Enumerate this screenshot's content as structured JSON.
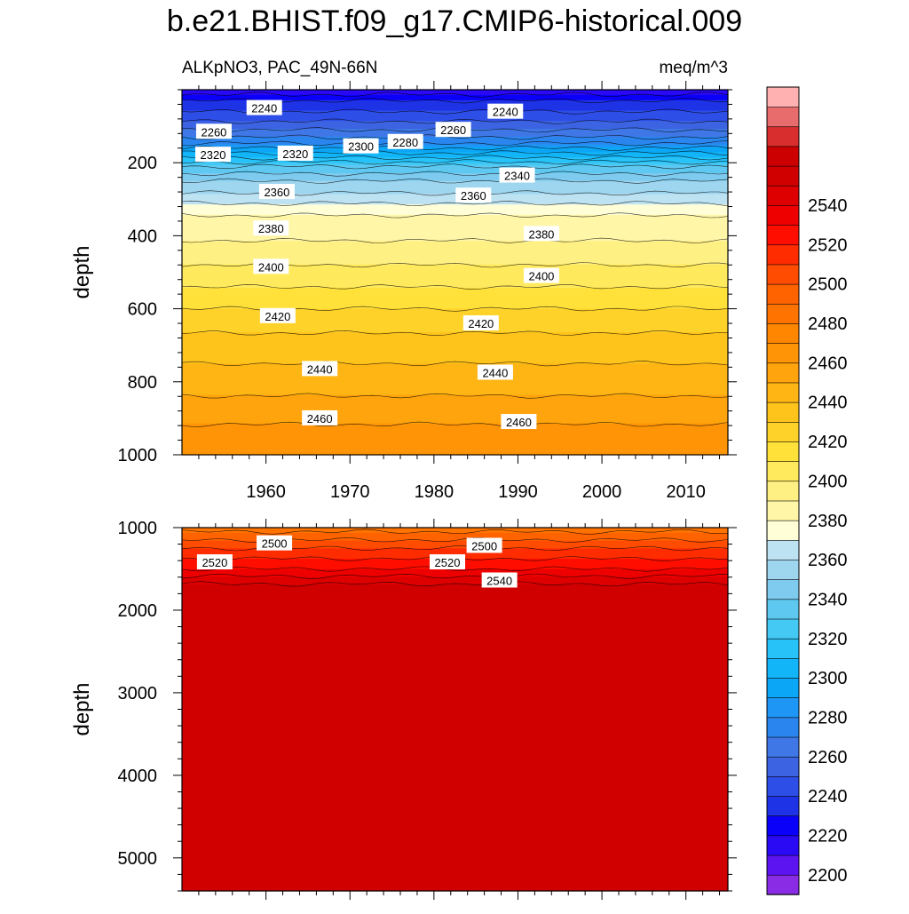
{
  "title": "b.e21.BHIST.f09_g17.CMIP6-historical.009",
  "left_subtitle": "ALKpNO3, PAC_49N-66N",
  "right_subtitle": "meq/m^3",
  "chart_data": [
    {
      "type": "heatmap",
      "panel": "upper",
      "ylabel": "depth",
      "xlim": [
        1950,
        2015
      ],
      "ylim": [
        1000,
        0
      ],
      "x_ticks": [
        1960,
        1970,
        1980,
        1990,
        2000,
        2010
      ],
      "y_ticks": [
        200,
        400,
        600,
        800,
        1000
      ],
      "contour_levels_depth_profile": [
        {
          "depth": 5,
          "value": 2215
        },
        {
          "depth": 30,
          "value": 2230
        },
        {
          "depth": 60,
          "value": 2240
        },
        {
          "depth": 100,
          "value": 2255
        },
        {
          "depth": 140,
          "value": 2275
        },
        {
          "depth": 180,
          "value": 2305
        },
        {
          "depth": 210,
          "value": 2330
        },
        {
          "depth": 250,
          "value": 2350
        },
        {
          "depth": 300,
          "value": 2365
        },
        {
          "depth": 330,
          "value": 2378
        },
        {
          "depth": 400,
          "value": 2388
        },
        {
          "depth": 480,
          "value": 2400
        },
        {
          "depth": 600,
          "value": 2420
        },
        {
          "depth": 700,
          "value": 2435
        },
        {
          "depth": 800,
          "value": 2445
        },
        {
          "depth": 900,
          "value": 2458
        },
        {
          "depth": 1000,
          "value": 2470
        }
      ],
      "contour_labels": [
        {
          "text": "2240",
          "x": 1959.8,
          "depth": 50
        },
        {
          "text": "2240",
          "x": 1988.5,
          "depth": 60
        },
        {
          "text": "2260",
          "x": 1953.8,
          "depth": 115
        },
        {
          "text": "2260",
          "x": 1982.3,
          "depth": 110
        },
        {
          "text": "2280",
          "x": 1976.6,
          "depth": 143
        },
        {
          "text": "2300",
          "x": 1971.3,
          "depth": 155
        },
        {
          "text": "2320",
          "x": 1953.7,
          "depth": 178
        },
        {
          "text": "2320",
          "x": 1963.5,
          "depth": 175
        },
        {
          "text": "2340",
          "x": 1989.9,
          "depth": 235
        },
        {
          "text": "2360",
          "x": 1961.3,
          "depth": 280
        },
        {
          "text": "2360",
          "x": 1984.7,
          "depth": 290
        },
        {
          "text": "2380",
          "x": 1960.6,
          "depth": 380
        },
        {
          "text": "2380",
          "x": 1992.8,
          "depth": 395
        },
        {
          "text": "2400",
          "x": 1960.6,
          "depth": 485
        },
        {
          "text": "2400",
          "x": 1992.8,
          "depth": 510
        },
        {
          "text": "2420",
          "x": 1961.4,
          "depth": 620
        },
        {
          "text": "2420",
          "x": 1985.6,
          "depth": 640
        },
        {
          "text": "2440",
          "x": 1966.4,
          "depth": 765
        },
        {
          "text": "2440",
          "x": 1987.3,
          "depth": 775
        },
        {
          "text": "2460",
          "x": 1966.4,
          "depth": 900
        },
        {
          "text": "2460",
          "x": 1990.1,
          "depth": 910
        }
      ]
    },
    {
      "type": "heatmap",
      "panel": "lower",
      "ylabel": "depth",
      "xlim": [
        1950,
        2015
      ],
      "ylim": [
        5400,
        1000
      ],
      "y_ticks": [
        1000,
        2000,
        3000,
        4000,
        5000
      ],
      "contour_levels_depth_profile": [
        {
          "depth": 1000,
          "value": 2485
        },
        {
          "depth": 1150,
          "value": 2500
        },
        {
          "depth": 1300,
          "value": 2515
        },
        {
          "depth": 1450,
          "value": 2525
        },
        {
          "depth": 1550,
          "value": 2535
        },
        {
          "depth": 1650,
          "value": 2548
        },
        {
          "depth": 1780,
          "value": 2556
        },
        {
          "depth": 5400,
          "value": 2556
        }
      ],
      "contour_labels": [
        {
          "text": "2500",
          "x": 1961.0,
          "depth": 1190
        },
        {
          "text": "2500",
          "x": 1986.0,
          "depth": 1220
        },
        {
          "text": "2520",
          "x": 1953.9,
          "depth": 1420
        },
        {
          "text": "2520",
          "x": 1981.6,
          "depth": 1420
        },
        {
          "text": "2540",
          "x": 1987.8,
          "depth": 1640
        }
      ]
    },
    {
      "type": "colorbar",
      "levels": [
        2200,
        2210,
        2220,
        2230,
        2240,
        2250,
        2260,
        2270,
        2280,
        2290,
        2300,
        2310,
        2320,
        2330,
        2340,
        2350,
        2360,
        2370,
        2380,
        2390,
        2400,
        2410,
        2420,
        2430,
        2440,
        2450,
        2460,
        2470,
        2480,
        2490,
        2500,
        2510,
        2520,
        2530,
        2540,
        2550
      ],
      "tick_labels": [
        "2200",
        "2220",
        "2240",
        "2260",
        "2280",
        "2300",
        "2320",
        "2340",
        "2360",
        "2380",
        "2400",
        "2420",
        "2440",
        "2460",
        "2480",
        "2500",
        "2520",
        "2540"
      ],
      "colors": [
        "#8a2be6",
        "#5c14f0",
        "#2a0af4",
        "#0a00fa",
        "#1e32e6",
        "#2e4ee8",
        "#3c64e2",
        "#3f78e6",
        "#2a86ee",
        "#1e96f6",
        "#0ca6f6",
        "#12b6f8",
        "#26c2f8",
        "#44c8f4",
        "#5ec8f0",
        "#7ecbef",
        "#9ed6f0",
        "#bde2f2",
        "#fffed6",
        "#fff6a8",
        "#fff084",
        "#ffe95c",
        "#ffe13a",
        "#ffd22a",
        "#ffc41c",
        "#ffb514",
        "#ffa40c",
        "#ff9506",
        "#ff8600",
        "#ff7400",
        "#ff6300",
        "#ff4c00",
        "#ff2c00",
        "#ff0e00",
        "#ef0000",
        "#de0000",
        "#d00000",
        "#cc0000",
        "#d82e2e",
        "#e86c6c",
        "#ffb0b0"
      ]
    }
  ]
}
